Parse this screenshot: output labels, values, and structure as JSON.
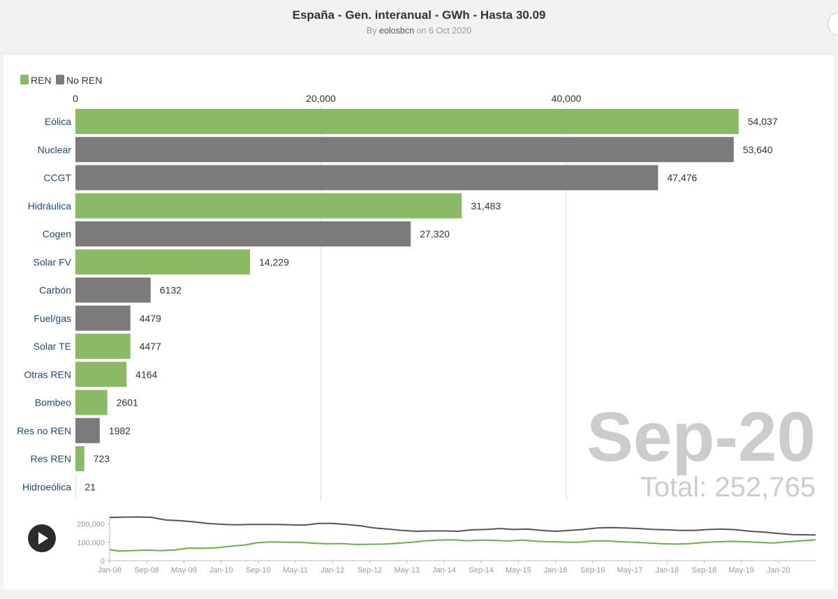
{
  "header": {
    "title": "España - Gen. interanual - GWh - Hasta 30.09",
    "byline_prefix": "By",
    "author": "eolosbcn",
    "byline_suffix": "on 6 Oct 2020"
  },
  "colors": {
    "ren": "#8aba63",
    "noren": "#7b7b7b",
    "line_ren": "#6ab23e",
    "line_noren": "#555555",
    "big_label": "#cccccc"
  },
  "overlay": {
    "period": "Sep-20",
    "total_text": "Total: 252,765"
  },
  "controls": {
    "play_icon": "play-icon"
  },
  "chart_data": [
    {
      "type": "bar",
      "orientation": "horizontal",
      "legend": [
        {
          "name": "REN",
          "color": "#8aba63"
        },
        {
          "name": "No REN",
          "color": "#7b7b7b"
        }
      ],
      "legend_position": "top-left",
      "x_axis": {
        "position": "top",
        "ticks": [
          0,
          20000,
          40000
        ],
        "tick_labels": [
          "0",
          "20,000",
          "40,000"
        ],
        "range": [
          0,
          54037
        ]
      },
      "grid": true,
      "bars": [
        {
          "label": "Eólica",
          "value": 54037,
          "display": "54,037",
          "group": "REN"
        },
        {
          "label": "Nuclear",
          "value": 53640,
          "display": "53,640",
          "group": "No REN"
        },
        {
          "label": "CCGT",
          "value": 47476,
          "display": "47,476",
          "group": "No REN"
        },
        {
          "label": "Hidráulica",
          "value": 31483,
          "display": "31,483",
          "group": "REN"
        },
        {
          "label": "Cogen",
          "value": 27320,
          "display": "27,320",
          "group": "No REN"
        },
        {
          "label": "Solar FV",
          "value": 14229,
          "display": "14,229",
          "group": "REN"
        },
        {
          "label": "Carbón",
          "value": 6132,
          "display": "6132",
          "group": "No REN"
        },
        {
          "label": "Fuel/gas",
          "value": 4479,
          "display": "4479",
          "group": "No REN"
        },
        {
          "label": "Solar TE",
          "value": 4477,
          "display": "4477",
          "group": "REN"
        },
        {
          "label": "Otras REN",
          "value": 4164,
          "display": "4164",
          "group": "REN"
        },
        {
          "label": "Bombeo",
          "value": 2601,
          "display": "2601",
          "group": "REN"
        },
        {
          "label": "Res no REN",
          "value": 1982,
          "display": "1982",
          "group": "No REN"
        },
        {
          "label": "Res REN",
          "value": 723,
          "display": "723",
          "group": "REN"
        },
        {
          "label": "Hidroeólica",
          "value": 21,
          "display": "21",
          "group": "REN"
        }
      ]
    },
    {
      "type": "line",
      "x_range": [
        "Jan-08",
        "Sep-20"
      ],
      "x_tick_labels": [
        "Jan-08",
        "Sep-08",
        "May-09",
        "Jan-10",
        "Sep-10",
        "May-11",
        "Jan-12",
        "Sep-12",
        "May-13",
        "Jan-14",
        "Sep-14",
        "May-15",
        "Jan-16",
        "Sep-16",
        "May-17",
        "Jan-18",
        "Sep-18",
        "May-19",
        "Jan-20"
      ],
      "y_ticks": [
        0,
        100000,
        200000
      ],
      "y_tick_labels": [
        "0",
        "100,000",
        "200,000"
      ],
      "ylim": [
        0,
        240000
      ],
      "series": [
        {
          "name": "No REN",
          "color": "#555555",
          "points": [
            [
              0,
              235000
            ],
            [
              3,
              237000
            ],
            [
              6,
              238000
            ],
            [
              9,
              236000
            ],
            [
              12,
              222000
            ],
            [
              15,
              218000
            ],
            [
              18,
              212000
            ],
            [
              21,
              203000
            ],
            [
              24,
              198000
            ],
            [
              27,
              195000
            ],
            [
              30,
              197000
            ],
            [
              33,
              197000
            ],
            [
              36,
              197000
            ],
            [
              39,
              195000
            ],
            [
              42,
              194000
            ],
            [
              45,
              203000
            ],
            [
              48,
              203000
            ],
            [
              51,
              197000
            ],
            [
              54,
              190000
            ],
            [
              57,
              178000
            ],
            [
              60,
              172000
            ],
            [
              63,
              165000
            ],
            [
              66,
              160000
            ],
            [
              69,
              162000
            ],
            [
              72,
              162000
            ],
            [
              75,
              160000
            ],
            [
              78,
              168000
            ],
            [
              81,
              170000
            ],
            [
              84,
              175000
            ],
            [
              87,
              170000
            ],
            [
              90,
              172000
            ],
            [
              93,
              165000
            ],
            [
              96,
              160000
            ],
            [
              99,
              165000
            ],
            [
              102,
              170000
            ],
            [
              105,
              178000
            ],
            [
              108,
              180000
            ],
            [
              111,
              178000
            ],
            [
              114,
              175000
            ],
            [
              117,
              170000
            ],
            [
              120,
              168000
            ],
            [
              123,
              165000
            ],
            [
              126,
              165000
            ],
            [
              129,
              170000
            ],
            [
              132,
              172000
            ],
            [
              135,
              168000
            ],
            [
              138,
              160000
            ],
            [
              141,
              155000
            ],
            [
              144,
              148000
            ],
            [
              147,
              142000
            ],
            [
              152,
              140000
            ]
          ]
        },
        {
          "name": "REN",
          "color": "#6ab23e",
          "points": [
            [
              0,
              60000
            ],
            [
              2,
              52000
            ],
            [
              5,
              55000
            ],
            [
              8,
              57000
            ],
            [
              11,
              55000
            ],
            [
              14,
              58000
            ],
            [
              17,
              68000
            ],
            [
              20,
              67000
            ],
            [
              23,
              70000
            ],
            [
              26,
              78000
            ],
            [
              29,
              85000
            ],
            [
              32,
              98000
            ],
            [
              35,
              102000
            ],
            [
              38,
              100000
            ],
            [
              41,
              100000
            ],
            [
              44,
              95000
            ],
            [
              47,
              92000
            ],
            [
              50,
              93000
            ],
            [
              53,
              88000
            ],
            [
              56,
              89000
            ],
            [
              59,
              90000
            ],
            [
              62,
              95000
            ],
            [
              65,
              100000
            ],
            [
              68,
              108000
            ],
            [
              71,
              112000
            ],
            [
              74,
              113000
            ],
            [
              77,
              108000
            ],
            [
              80,
              112000
            ],
            [
              83,
              110000
            ],
            [
              86,
              107000
            ],
            [
              89,
              112000
            ],
            [
              92,
              105000
            ],
            [
              95,
              103000
            ],
            [
              98,
              101000
            ],
            [
              101,
              100000
            ],
            [
              104,
              107000
            ],
            [
              107,
              108000
            ],
            [
              110,
              103000
            ],
            [
              113,
              100000
            ],
            [
              116,
              96000
            ],
            [
              119,
              92000
            ],
            [
              122,
              90000
            ],
            [
              125,
              93000
            ],
            [
              128,
              99000
            ],
            [
              131,
              103000
            ],
            [
              134,
              105000
            ],
            [
              137,
              103000
            ],
            [
              140,
              99000
            ],
            [
              143,
              96000
            ],
            [
              146,
              103000
            ],
            [
              149,
              108000
            ],
            [
              152,
              113000
            ]
          ]
        }
      ]
    }
  ]
}
